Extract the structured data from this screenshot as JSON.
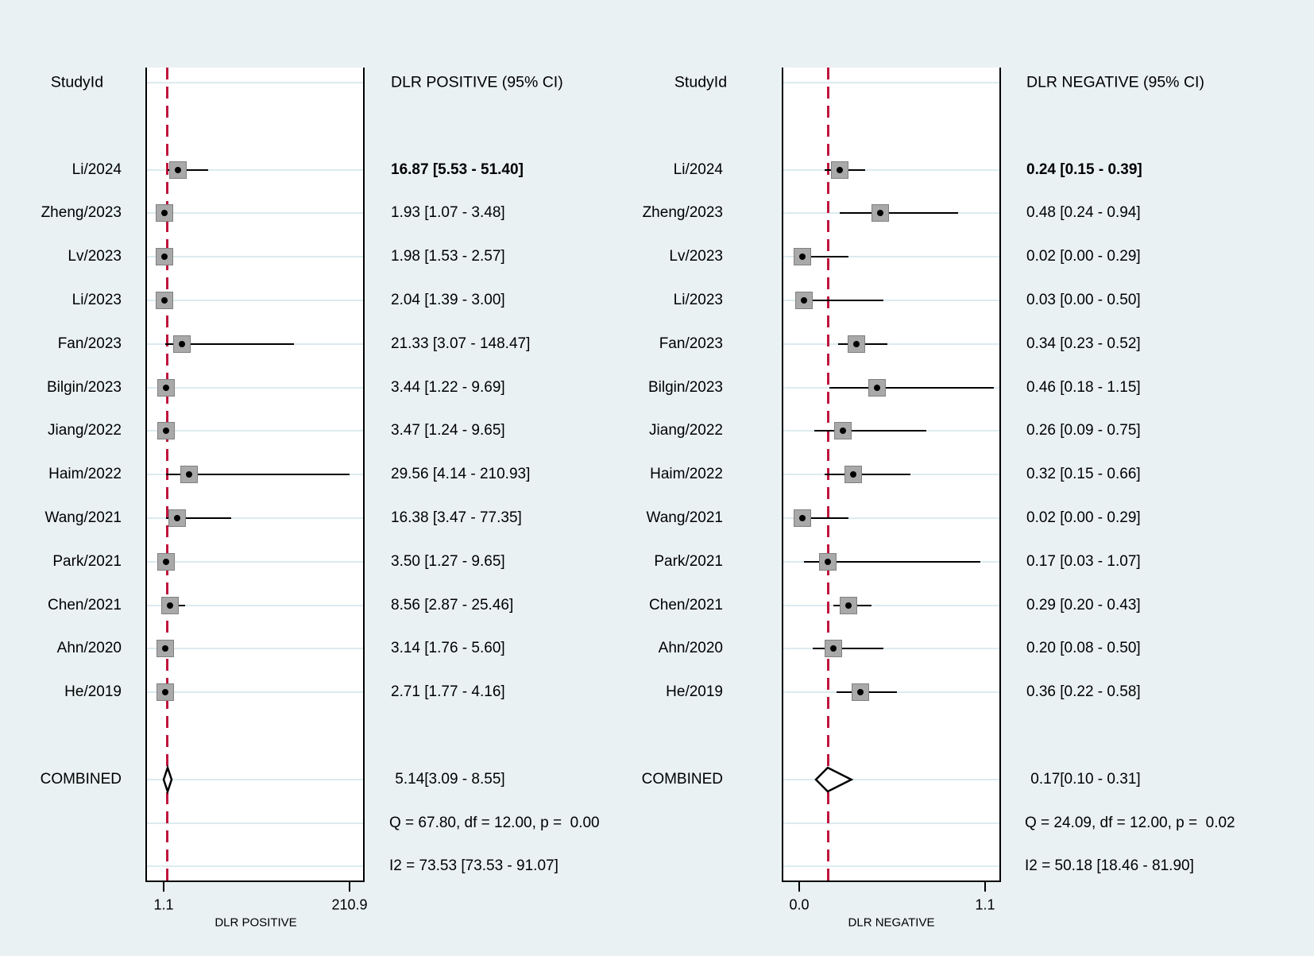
{
  "colors": {
    "background": "#e9f1f3",
    "plot_background": "#ffffff",
    "grid": "#dcebf0",
    "reference_line": "#c0143c",
    "marker_fill": "#a9a9a9",
    "marker_border": "#808080",
    "ci_line": "#000000",
    "border": "#000000",
    "text": "#000000"
  },
  "chart_data": [
    {
      "type": "forest",
      "panel": "DLR Positive",
      "study_header": "StudyId",
      "value_header": "DLR POSITIVE (95% CI)",
      "axis": {
        "min": 1.1,
        "max": 210.9,
        "min_label": "1.1",
        "max_label": "210.9",
        "title": "DLR POSITIVE"
      },
      "studies": [
        {
          "label": "Li/2024",
          "value": 16.87,
          "lo": 5.53,
          "hi": 51.4,
          "text": "16.87 [5.53 - 51.40]",
          "bold": true
        },
        {
          "label": "Zheng/2023",
          "value": 1.93,
          "lo": 1.07,
          "hi": 3.48,
          "text": "1.93 [1.07 - 3.48]",
          "bold": false
        },
        {
          "label": "Lv/2023",
          "value": 1.98,
          "lo": 1.53,
          "hi": 2.57,
          "text": "1.98 [1.53 - 2.57]",
          "bold": false
        },
        {
          "label": "Li/2023",
          "value": 2.04,
          "lo": 1.39,
          "hi": 3.0,
          "text": "2.04 [1.39 - 3.00]",
          "bold": false
        },
        {
          "label": "Fan/2023",
          "value": 21.33,
          "lo": 3.07,
          "hi": 148.47,
          "text": "21.33 [3.07 - 148.47]",
          "bold": false
        },
        {
          "label": "Bilgin/2023",
          "value": 3.44,
          "lo": 1.22,
          "hi": 9.69,
          "text": "3.44 [1.22 - 9.69]",
          "bold": false
        },
        {
          "label": "Jiang/2022",
          "value": 3.47,
          "lo": 1.24,
          "hi": 9.65,
          "text": "3.47 [1.24 - 9.65]",
          "bold": false
        },
        {
          "label": "Haim/2022",
          "value": 29.56,
          "lo": 4.14,
          "hi": 210.93,
          "text": "29.56 [4.14 - 210.93]",
          "bold": false
        },
        {
          "label": "Wang/2021",
          "value": 16.38,
          "lo": 3.47,
          "hi": 77.35,
          "text": "16.38 [3.47 - 77.35]",
          "bold": false
        },
        {
          "label": "Park/2021",
          "value": 3.5,
          "lo": 1.27,
          "hi": 9.65,
          "text": "3.50 [1.27 - 9.65]",
          "bold": false
        },
        {
          "label": "Chen/2021",
          "value": 8.56,
          "lo": 2.87,
          "hi": 25.46,
          "text": "8.56 [2.87 - 25.46]",
          "bold": false
        },
        {
          "label": "Ahn/2020",
          "value": 3.14,
          "lo": 1.76,
          "hi": 5.6,
          "text": "3.14 [1.76 - 5.60]",
          "bold": false
        },
        {
          "label": "He/2019",
          "value": 2.71,
          "lo": 1.77,
          "hi": 4.16,
          "text": "2.71 [1.77 - 4.16]",
          "bold": false
        }
      ],
      "combined": {
        "label": "COMBINED",
        "value": 5.14,
        "lo": 3.09,
        "hi": 8.55,
        "text": " 5.14[3.09 - 8.55]"
      },
      "heterogeneity": "Q = 67.80, df = 12.00, p =  0.00",
      "i2": "I2 = 73.53 [73.53 - 91.07]"
    },
    {
      "type": "forest",
      "panel": "DLR Negative",
      "study_header": "StudyId",
      "value_header": "DLR NEGATIVE (95% CI)",
      "axis": {
        "min": 0.0,
        "max": 1.1,
        "min_label": "0.0",
        "max_label": "1.1",
        "title": "DLR NEGATIVE"
      },
      "studies": [
        {
          "label": "Li/2024",
          "value": 0.24,
          "lo": 0.15,
          "hi": 0.39,
          "text": "0.24 [0.15 - 0.39]",
          "bold": true
        },
        {
          "label": "Zheng/2023",
          "value": 0.48,
          "lo": 0.24,
          "hi": 0.94,
          "text": "0.48 [0.24 - 0.94]",
          "bold": false
        },
        {
          "label": "Lv/2023",
          "value": 0.02,
          "lo": 0.0,
          "hi": 0.29,
          "text": "0.02 [0.00 - 0.29]",
          "bold": false
        },
        {
          "label": "Li/2023",
          "value": 0.03,
          "lo": 0.0,
          "hi": 0.5,
          "text": "0.03 [0.00 - 0.50]",
          "bold": false
        },
        {
          "label": "Fan/2023",
          "value": 0.34,
          "lo": 0.23,
          "hi": 0.52,
          "text": "0.34 [0.23 - 0.52]",
          "bold": false
        },
        {
          "label": "Bilgin/2023",
          "value": 0.46,
          "lo": 0.18,
          "hi": 1.15,
          "text": "0.46 [0.18 - 1.15]",
          "bold": false
        },
        {
          "label": "Jiang/2022",
          "value": 0.26,
          "lo": 0.09,
          "hi": 0.75,
          "text": "0.26 [0.09 - 0.75]",
          "bold": false
        },
        {
          "label": "Haim/2022",
          "value": 0.32,
          "lo": 0.15,
          "hi": 0.66,
          "text": "0.32 [0.15 - 0.66]",
          "bold": false
        },
        {
          "label": "Wang/2021",
          "value": 0.02,
          "lo": 0.0,
          "hi": 0.29,
          "text": "0.02 [0.00 - 0.29]",
          "bold": false
        },
        {
          "label": "Park/2021",
          "value": 0.17,
          "lo": 0.03,
          "hi": 1.07,
          "text": "0.17 [0.03 - 1.07]",
          "bold": false
        },
        {
          "label": "Chen/2021",
          "value": 0.29,
          "lo": 0.2,
          "hi": 0.43,
          "text": "0.29 [0.20 - 0.43]",
          "bold": false
        },
        {
          "label": "Ahn/2020",
          "value": 0.2,
          "lo": 0.08,
          "hi": 0.5,
          "text": "0.20 [0.08 - 0.50]",
          "bold": false
        },
        {
          "label": "He/2019",
          "value": 0.36,
          "lo": 0.22,
          "hi": 0.58,
          "text": "0.36 [0.22 - 0.58]",
          "bold": false
        }
      ],
      "combined": {
        "label": "COMBINED",
        "value": 0.17,
        "lo": 0.1,
        "hi": 0.31,
        "text": " 0.17[0.10 - 0.31]"
      },
      "heterogeneity": "Q = 24.09, df = 12.00, p =  0.02",
      "i2": "I2 = 50.18 [18.46 - 81.90]"
    }
  ]
}
